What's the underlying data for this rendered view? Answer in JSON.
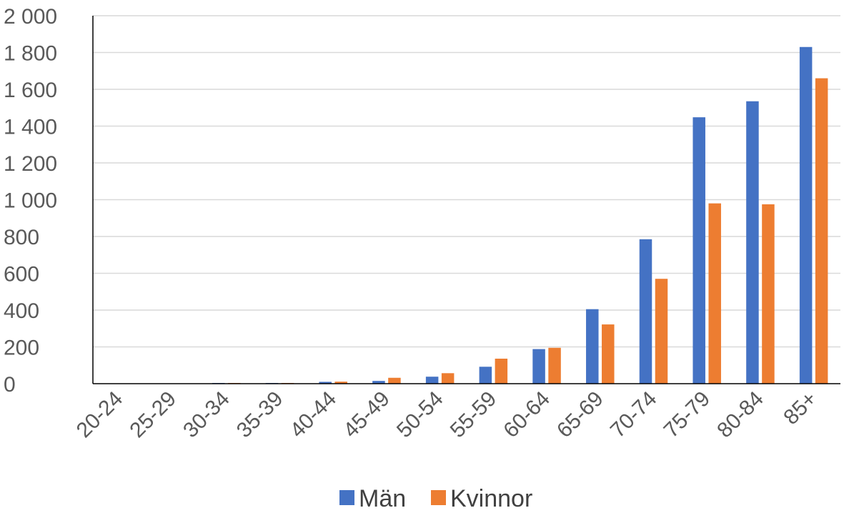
{
  "chart_data": {
    "type": "bar",
    "categories": [
      "20-24",
      "25-29",
      "30-34",
      "35-39",
      "40-44",
      "45-49",
      "50-54",
      "55-59",
      "60-64",
      "65-69",
      "70-74",
      "75-79",
      "80-84",
      "85+"
    ],
    "series": [
      {
        "name": "Män",
        "color": "#4472C4",
        "values": [
          0,
          0,
          1,
          3,
          10,
          15,
          38,
          92,
          188,
          405,
          785,
          1448,
          1535,
          1830
        ]
      },
      {
        "name": "Kvinnor",
        "color": "#ED7D31",
        "values": [
          0,
          0,
          3,
          2,
          11,
          32,
          57,
          136,
          195,
          322,
          570,
          980,
          975,
          1660
        ]
      }
    ],
    "ylim": [
      0,
      2000
    ],
    "y_ticks": [
      0,
      200,
      400,
      600,
      800,
      1000,
      1200,
      1400,
      1600,
      1800,
      2000
    ],
    "y_tick_labels": [
      "0",
      "200",
      "400",
      "600",
      "800",
      "1 000",
      "1 200",
      "1 400",
      "1 600",
      "1 800",
      "2 000"
    ],
    "grid": true,
    "legend_position": "bottom"
  }
}
